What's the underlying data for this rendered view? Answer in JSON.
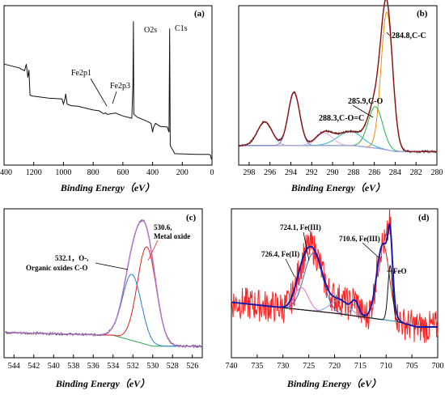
{
  "chart_data": [
    {
      "panel": "(a)",
      "type": "line",
      "xlabel": "Binding Energy（eV）",
      "ylabel": "",
      "xlim": [
        1400,
        0
      ],
      "xticks": [
        1400,
        1200,
        1000,
        800,
        600,
        400,
        200,
        0
      ],
      "annotations": [
        {
          "text": "O2s",
          "x": 529
        },
        {
          "text": "C1s",
          "x": 285
        },
        {
          "text": "Fe2p1",
          "x": 724
        },
        {
          "text": "Fe2p3",
          "x": 711
        }
      ],
      "series": [
        {
          "values": [
            [
              1400,
              0.66
            ],
            [
              1300,
              0.635
            ],
            [
              1262,
              0.615
            ],
            [
              1250,
              0.66
            ],
            [
              1240,
              0.57
            ],
            [
              1232,
              0.62
            ],
            [
              1225,
              0.45
            ],
            [
              1210,
              0.445
            ],
            [
              1100,
              0.43
            ],
            [
              1010,
              0.425
            ],
            [
              1000,
              0.39
            ],
            [
              990,
              0.425
            ],
            [
              985,
              0.46
            ],
            [
              975,
              0.39
            ],
            [
              950,
              0.38
            ],
            [
              900,
              0.375
            ],
            [
              800,
              0.35
            ],
            [
              760,
              0.345
            ],
            [
              730,
              0.325
            ],
            [
              715,
              0.33
            ],
            [
              705,
              0.32
            ],
            [
              650,
              0.33
            ],
            [
              600,
              0.31
            ],
            [
              560,
              0.3
            ],
            [
              540,
              0.295
            ],
            [
              532,
              0.52
            ],
            [
              529,
              0.95
            ],
            [
              526,
              0.32
            ],
            [
              500,
              0.3
            ],
            [
              450,
              0.28
            ],
            [
              410,
              0.26
            ],
            [
              400,
              0.2
            ],
            [
              395,
              0.23
            ],
            [
              380,
              0.26
            ],
            [
              350,
              0.24
            ],
            [
              300,
              0.235
            ],
            [
              289,
              0.2
            ],
            [
              285,
              0.9
            ],
            [
              281,
              0.11
            ],
            [
              250,
              0.055
            ],
            [
              100,
              0.05
            ],
            [
              20,
              0.05
            ],
            [
              10,
              0.045
            ],
            [
              5,
              0.02
            ],
            [
              0,
              0.02
            ]
          ]
        }
      ]
    },
    {
      "panel": "(b)",
      "type": "line",
      "xlabel": "Binding Energy（eV）",
      "ylabel": "",
      "xlim": [
        299,
        280
      ],
      "xticks": [
        298,
        296,
        294,
        292,
        290,
        288,
        286,
        284,
        282,
        280
      ],
      "annotations": [
        {
          "text": "284.8,C-C",
          "x": 284.8
        },
        {
          "text": "285.9,C-O",
          "x": 285.9
        },
        {
          "text": "288.3,C-O=C",
          "x": 288.3
        }
      ],
      "baseline": [
        [
          299,
          0.11
        ],
        [
          288,
          0.11
        ],
        [
          285.5,
          0.09
        ],
        [
          284,
          0.07
        ],
        [
          280,
          0.07
        ]
      ],
      "peaks": [
        {
          "name": "284.8,C-C",
          "center": 284.8,
          "height": 0.93,
          "width": 0.55,
          "color": "#f28c00"
        },
        {
          "name": "285.9,C-O",
          "center": 285.9,
          "height": 0.28,
          "width": 0.7,
          "color": "#22b24c"
        },
        {
          "name": "288.3,C-O=C",
          "center": 288.3,
          "height": 0.095,
          "width": 1.2,
          "color": "#29b6c8"
        },
        {
          "name": "290.8",
          "center": 290.8,
          "height": 0.085,
          "width": 0.8,
          "color": "#e6a0d8"
        },
        {
          "name": "293.7",
          "center": 293.7,
          "height": 0.36,
          "width": 0.55,
          "color": "#6a7bd6"
        },
        {
          "name": "296.5",
          "center": 296.5,
          "height": 0.16,
          "width": 0.7,
          "color": "#9fa8e0"
        }
      ]
    },
    {
      "panel": "(c)",
      "type": "line",
      "xlabel": "Binding Energy（eV）",
      "ylabel": "",
      "xlim": [
        545,
        525
      ],
      "xticks": [
        544,
        542,
        540,
        538,
        536,
        534,
        532,
        530,
        528,
        526
      ],
      "annotations": [
        {
          "text": "530.6,",
          "x": 530.6
        },
        {
          "text": "Metal oxide",
          "x": 530.6
        },
        {
          "text": "532.1，O-,",
          "x": 532.1
        },
        {
          "text": "Organic oxides C-O",
          "x": 532.1
        }
      ],
      "baseline": [
        [
          545,
          0.16
        ],
        [
          534,
          0.14
        ],
        [
          532,
          0.1
        ],
        [
          530,
          0.06
        ],
        [
          525,
          0.06
        ]
      ],
      "peaks": [
        {
          "name": "530.6, Metal oxide",
          "center": 530.6,
          "height": 0.71,
          "width": 0.95,
          "color": "#e02020"
        },
        {
          "name": "532.1，O-, Organic oxides C-O",
          "center": 532.1,
          "height": 0.48,
          "width": 0.95,
          "color": "#2a7fd4"
        }
      ]
    },
    {
      "panel": "(d)",
      "type": "line",
      "xlabel": "Binding Energy（eV）",
      "ylabel": "",
      "xlim": [
        740,
        700
      ],
      "xticks": [
        740,
        735,
        730,
        725,
        720,
        715,
        710,
        705,
        700
      ],
      "annotations": [
        {
          "text": "724.1, Fe(III)",
          "x": 724.1
        },
        {
          "text": "726.4, Fe(II)",
          "x": 726.4
        },
        {
          "text": "710.6, Fe(III)",
          "x": 710.6
        },
        {
          "text": "FeO",
          "x": 709
        }
      ],
      "baseline": [
        [
          740,
          0.38
        ],
        [
          730,
          0.34
        ],
        [
          720,
          0.3
        ],
        [
          712,
          0.26
        ],
        [
          708,
          0.24
        ],
        [
          704,
          0.2
        ],
        [
          700,
          0.2
        ]
      ],
      "peaks": [
        {
          "name": "724.1, Fe(III)",
          "center": 724.1,
          "height": 0.42,
          "width": 1.8,
          "color": "#4060c0"
        },
        {
          "name": "726.4, Fe(II)",
          "center": 726.4,
          "height": 0.16,
          "width": 1.3,
          "color": "#e070d0"
        },
        {
          "name": "719",
          "center": 719,
          "height": 0.1,
          "width": 1.8,
          "color": "#8aa0e0"
        },
        {
          "name": "716",
          "center": 716,
          "height": 0.09,
          "width": 0.7,
          "color": "#30b0c0"
        },
        {
          "name": "710.6, Fe(III)",
          "center": 710.6,
          "height": 0.55,
          "width": 1.2,
          "color": "#c22020"
        },
        {
          "name": "FeO",
          "center": 709.2,
          "height": 0.4,
          "width": 0.45,
          "color": "#111111"
        }
      ]
    }
  ]
}
